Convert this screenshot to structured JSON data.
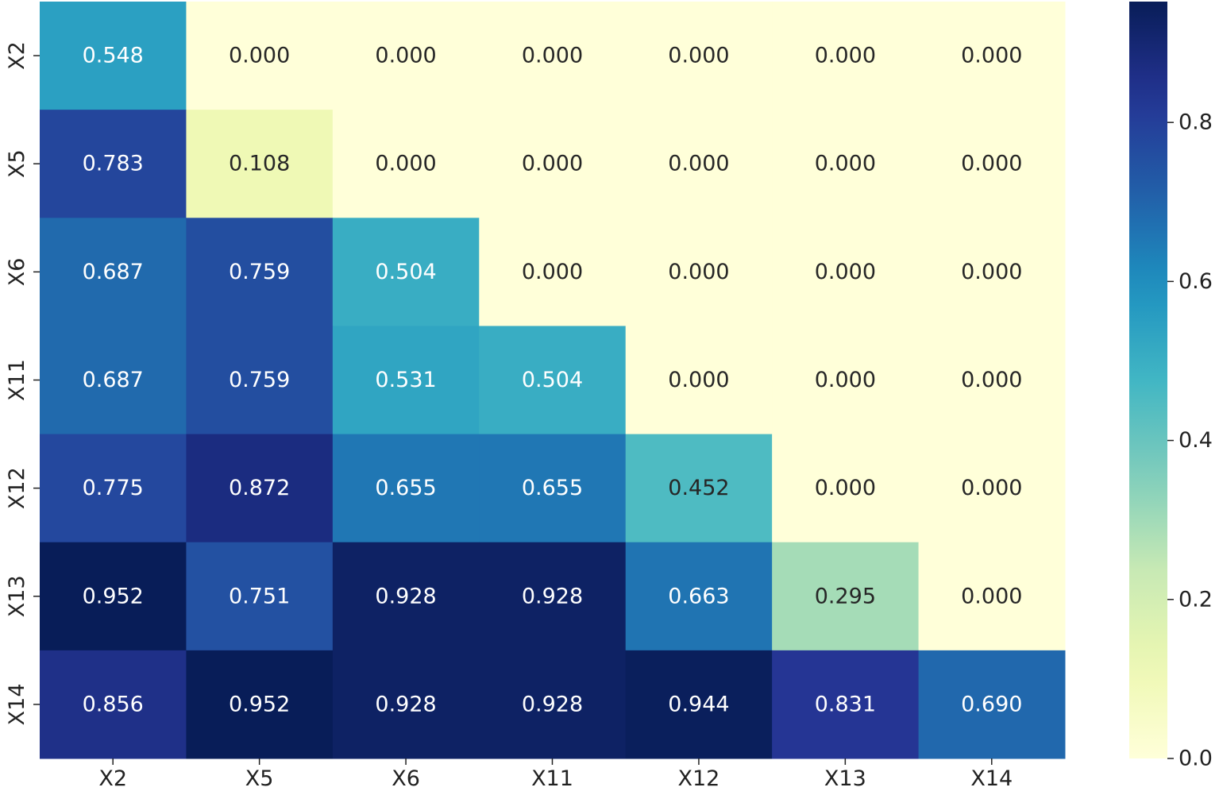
{
  "chart_data": {
    "type": "heatmap",
    "title": "",
    "xlabel": "",
    "ylabel": "",
    "x_labels": [
      "X2",
      "X5",
      "X6",
      "X11",
      "X12",
      "X13",
      "X14"
    ],
    "y_labels": [
      "X2",
      "X5",
      "X6",
      "X11",
      "X12",
      "X13",
      "X14"
    ],
    "values": [
      [
        0.548,
        0.0,
        0.0,
        0.0,
        0.0,
        0.0,
        0.0
      ],
      [
        0.783,
        0.108,
        0.0,
        0.0,
        0.0,
        0.0,
        0.0
      ],
      [
        0.687,
        0.759,
        0.504,
        0.0,
        0.0,
        0.0,
        0.0
      ],
      [
        0.687,
        0.759,
        0.531,
        0.504,
        0.0,
        0.0,
        0.0
      ],
      [
        0.775,
        0.872,
        0.655,
        0.655,
        0.452,
        0.0,
        0.0
      ],
      [
        0.952,
        0.751,
        0.928,
        0.928,
        0.663,
        0.295,
        0.0
      ],
      [
        0.856,
        0.952,
        0.928,
        0.928,
        0.944,
        0.831,
        0.69
      ]
    ],
    "value_format": "0.000",
    "colormap": "YlGnBu",
    "colorbar": {
      "range": [
        0.0,
        0.952
      ],
      "ticks": [
        0.0,
        0.2,
        0.4,
        0.6,
        0.8
      ],
      "tick_labels": [
        "0.0",
        "0.2",
        "0.4",
        "0.6",
        "0.8"
      ]
    },
    "grid": false
  }
}
